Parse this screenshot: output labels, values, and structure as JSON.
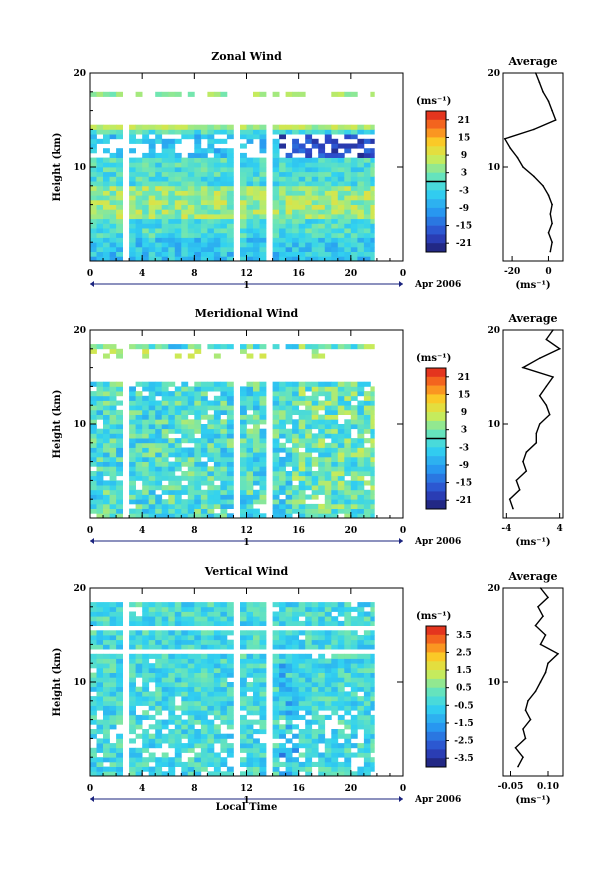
{
  "x_axis_label": "Local Time",
  "day_label": "1",
  "month_label": "Apr 2006",
  "chart_data": [
    {
      "type": "heatmap",
      "title": "Zonal Wind",
      "ylabel": "Height (km)",
      "xlim": [
        0,
        24
      ],
      "ylim": [
        0,
        20
      ],
      "x_ticks": [
        "0",
        "4",
        "8",
        "12",
        "16",
        "20",
        "0"
      ],
      "y_ticks": [
        "10",
        "20"
      ],
      "colorbar": {
        "unit_label": "(ms⁻¹)",
        "ticks": [
          "21",
          "15",
          "9",
          "3",
          "-3",
          "-9",
          "-15",
          "-21"
        ],
        "range": [
          -24,
          24
        ]
      },
      "data_gaps_hours": [
        2.5,
        11,
        13.5
      ],
      "data_end_hour": 21.8,
      "profile": {
        "title": "Average",
        "xlabel": "(ms⁻¹)",
        "x_ticks": [
          "-20",
          "0"
        ],
        "xlim": [
          -25,
          8
        ],
        "heights_km": [
          1,
          2,
          3,
          4,
          5,
          6,
          7,
          8,
          9,
          10,
          11,
          12,
          13,
          14,
          15,
          16,
          17,
          18,
          19,
          20
        ],
        "values": [
          1,
          2,
          0,
          2,
          1,
          2,
          0,
          -3,
          -8,
          -14,
          -17,
          -21,
          -24,
          -8,
          4,
          2,
          0,
          -3,
          -5,
          -7
        ]
      }
    },
    {
      "type": "heatmap",
      "title": "Meridional Wind",
      "ylabel": "Height (km)",
      "xlim": [
        0,
        24
      ],
      "ylim": [
        0,
        20
      ],
      "x_ticks": [
        "0",
        "4",
        "8",
        "12",
        "16",
        "20",
        "0"
      ],
      "y_ticks": [
        "10",
        "20"
      ],
      "colorbar": {
        "unit_label": "(ms⁻¹)",
        "ticks": [
          "21",
          "15",
          "9",
          "3",
          "-3",
          "-9",
          "-15",
          "-21"
        ],
        "range": [
          -24,
          24
        ]
      },
      "data_gaps_hours": [
        2.5,
        11,
        13.5
      ],
      "data_end_hour": 21.8,
      "profile": {
        "title": "Average",
        "xlabel": "(ms⁻¹)",
        "x_ticks": [
          "-4",
          "4"
        ],
        "xlim": [
          -4.5,
          4.5
        ],
        "heights_km": [
          1,
          2,
          3,
          4,
          5,
          6,
          7,
          8,
          9,
          10,
          11,
          12,
          13,
          14,
          15,
          16,
          17,
          18,
          19,
          20
        ],
        "values": [
          -3,
          -3.5,
          -2,
          -2.5,
          -1,
          -1.5,
          -1,
          0.5,
          0.5,
          1,
          2.5,
          2,
          1,
          2,
          3,
          -1.5,
          1,
          4,
          2,
          3
        ]
      }
    },
    {
      "type": "heatmap",
      "title": "Vertical Wind",
      "ylabel": "Height (km)",
      "xlim": [
        0,
        24
      ],
      "ylim": [
        0,
        20
      ],
      "x_ticks": [
        "0",
        "4",
        "8",
        "12",
        "16",
        "20",
        "0"
      ],
      "y_ticks": [
        "10",
        "20"
      ],
      "colorbar": {
        "unit_label": "(ms⁻¹)",
        "ticks": [
          "3.5",
          "2.5",
          "1.5",
          "0.5",
          "-0.5",
          "-1.5",
          "-2.5",
          "-3.5"
        ],
        "range": [
          -4,
          4
        ]
      },
      "data_gaps_hours": [
        2.5,
        11,
        13.5
      ],
      "data_end_hour": 21.8,
      "profile": {
        "title": "Average",
        "xlabel": "(ms⁻¹)",
        "x_ticks": [
          "-0.05",
          "0.10"
        ],
        "xlim": [
          -0.08,
          0.16
        ],
        "heights_km": [
          1,
          2,
          3,
          4,
          5,
          6,
          7,
          8,
          9,
          10,
          11,
          12,
          13,
          14,
          15,
          16,
          17,
          18,
          19,
          20
        ],
        "values": [
          -0.02,
          0.0,
          -0.03,
          0.01,
          0.0,
          0.03,
          0.01,
          0.02,
          0.05,
          0.07,
          0.09,
          0.1,
          0.14,
          0.07,
          0.09,
          0.05,
          0.08,
          0.06,
          0.1,
          0.07
        ]
      }
    }
  ]
}
